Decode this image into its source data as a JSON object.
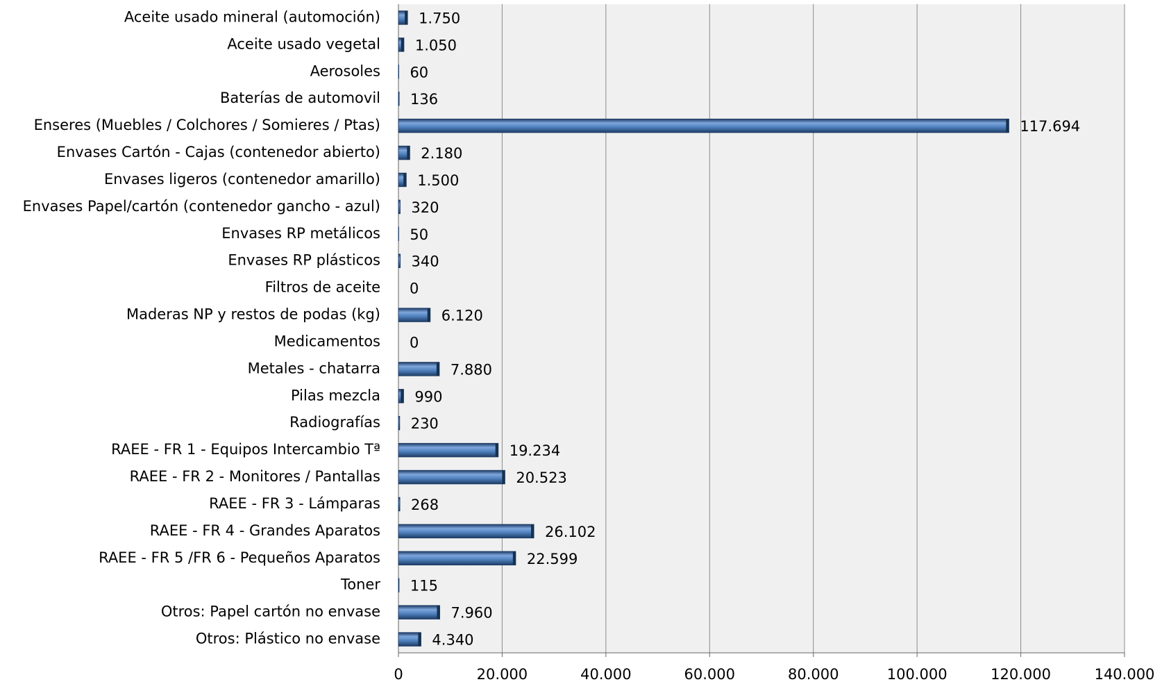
{
  "chart_data": {
    "type": "bar",
    "orientation": "horizontal",
    "categories": [
      "Aceite usado mineral (automoción)",
      "Aceite usado vegetal",
      "Aerosoles",
      "Baterías de automovil",
      "Enseres (Muebles / Colchores / Somieres / Ptas)",
      "Envases Cartón - Cajas (contenedor abierto)",
      "Envases ligeros (contenedor amarillo)",
      "Envases Papel/cartón (contenedor gancho - azul)",
      "Envases RP metálicos",
      "Envases RP plásticos",
      "Filtros de aceite",
      "Maderas NP y restos de podas (kg)",
      "Medicamentos",
      "Metales - chatarra",
      "Pilas mezcla",
      "Radiografías",
      "RAEE - FR 1 - Equipos Intercambio Tª",
      "RAEE - FR 2 - Monitores / Pantallas",
      "RAEE - FR 3 - Lámparas",
      "RAEE - FR 4 - Grandes Aparatos",
      "RAEE - FR 5 /FR 6 - Pequeños Aparatos",
      "Toner",
      "Otros: Papel cartón no envase",
      "Otros: Plástico no envase"
    ],
    "values": [
      1750,
      1050,
      60,
      136,
      117694,
      2180,
      1500,
      320,
      50,
      340,
      0,
      6120,
      0,
      7880,
      990,
      230,
      19234,
      20523,
      268,
      26102,
      22599,
      115,
      7960,
      4340
    ],
    "value_labels": [
      "1.750",
      "1.050",
      "60",
      "136",
      "117.694",
      "2.180",
      "1.500",
      "320",
      "50",
      "340",
      "0",
      "6.120",
      "0",
      "7.880",
      "990",
      "230",
      "19.234",
      "20.523",
      "268",
      "26.102",
      "22.599",
      "115",
      "7.960",
      "4.340"
    ],
    "color": "#4f81bd",
    "xlim": [
      0,
      140000
    ],
    "xticks": [
      0,
      {
        "value": 20000,
        "label": "20.000"
      },
      {
        "value": 40000,
        "label": "40.000"
      },
      {
        "value": 60000,
        "label": "60.000"
      },
      {
        "value": 80000,
        "label": "80.000"
      },
      {
        "value": 100000,
        "label": "100.000"
      },
      {
        "value": 120000,
        "label": "120.000"
      },
      {
        "value": 140000,
        "label": "140.000"
      }
    ],
    "grid": true
  }
}
